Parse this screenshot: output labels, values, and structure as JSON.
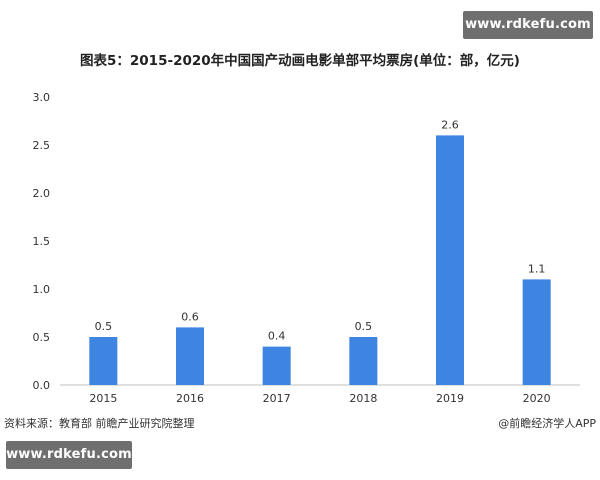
{
  "watermark": {
    "top": "www.rdkefu.com",
    "bottom": "www.rdkefu.com"
  },
  "footer": {
    "source": "资料来源：教育部 前瞻产业研究院整理",
    "credit": "@前瞻经济学人APP"
  },
  "colors": {
    "bar": "#3d85e0",
    "axis": "#bfbfbf",
    "text": "#333333"
  },
  "chart_data": {
    "type": "bar",
    "title": "图表5：2015-2020年中国国产动画电影单部平均票房(单位：部，亿元)",
    "xlabel": "",
    "ylabel": "",
    "categories": [
      "2015",
      "2016",
      "2017",
      "2018",
      "2019",
      "2020"
    ],
    "values": [
      0.5,
      0.6,
      0.4,
      0.5,
      2.6,
      1.1
    ],
    "data_labels": [
      "0.5",
      "0.6",
      "0.4",
      "0.5",
      "2.6",
      "1.1"
    ],
    "ylim": [
      0,
      3.0
    ],
    "yticks": [
      "0.0",
      "0.5",
      "1.0",
      "1.5",
      "2.0",
      "2.5",
      "3.0"
    ],
    "grid": false,
    "legend": "none"
  }
}
